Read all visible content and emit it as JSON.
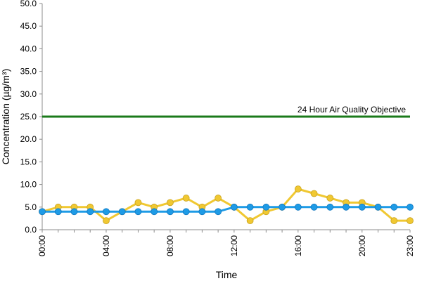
{
  "chart_data": {
    "type": "line",
    "xlabel": "Time",
    "ylabel": "Concentration (µg/m³)",
    "ylim": [
      0,
      50
    ],
    "y_ticks": [
      "0.0",
      "5.0",
      "10.0",
      "15.0",
      "20.0",
      "25.0",
      "30.0",
      "35.0",
      "40.0",
      "45.0",
      "50.0"
    ],
    "x": [
      "00:00",
      "01:00",
      "02:00",
      "03:00",
      "04:00",
      "05:00",
      "06:00",
      "07:00",
      "08:00",
      "09:00",
      "10:00",
      "11:00",
      "12:00",
      "13:00",
      "14:00",
      "15:00",
      "16:00",
      "17:00",
      "18:00",
      "19:00",
      "20:00",
      "21:00",
      "22:00",
      "23:00"
    ],
    "x_tick_labels": [
      "00:00",
      "04:00",
      "08:00",
      "12:00",
      "16:00",
      "20:00",
      "23:00"
    ],
    "grid": false,
    "series": [
      {
        "color": "#f0c832",
        "values": [
          4,
          5,
          5,
          5,
          2,
          4,
          6,
          5,
          6,
          7,
          5,
          7,
          5,
          2,
          4,
          5,
          9,
          8,
          7,
          6,
          6,
          5,
          2,
          2
        ]
      },
      {
        "color": "#1e9be6",
        "values": [
          4,
          4,
          4,
          4,
          4,
          4,
          4,
          4,
          4,
          4,
          4,
          4,
          5,
          5,
          5,
          5,
          5,
          5,
          5,
          5,
          5,
          5,
          5,
          5
        ]
      }
    ],
    "reference_lines": [
      {
        "label": "24 Hour Air Quality Objective",
        "value": 25,
        "color": "#1a7a1a"
      }
    ]
  }
}
